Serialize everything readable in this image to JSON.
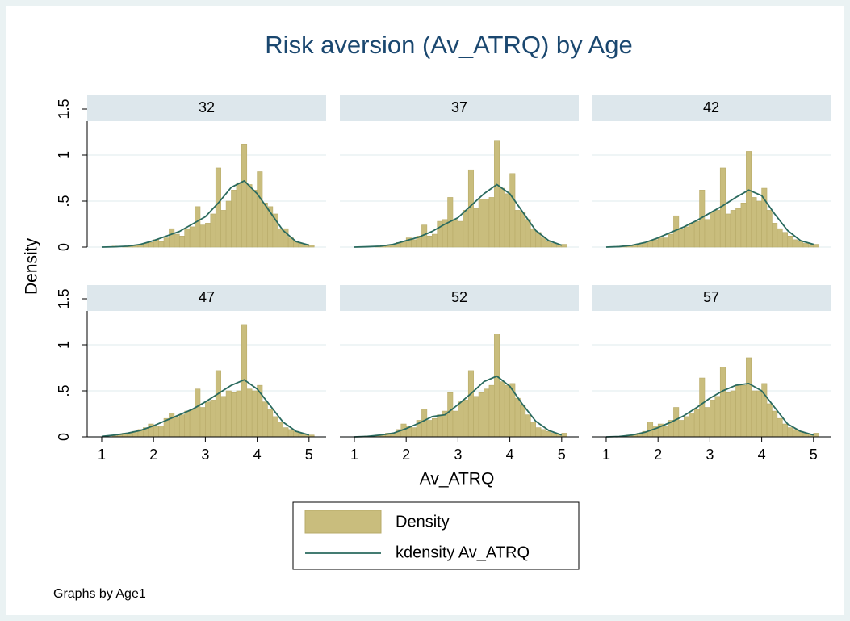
{
  "chart_data": {
    "type": "histogram",
    "title": "Risk aversion (Av_ATRQ) by Age",
    "xlabel": "Av_ATRQ",
    "ylabel": "Density",
    "note": "Graphs by Age1",
    "xlim": [
      0.72,
      5.33
    ],
    "xticks": [
      1,
      2,
      3,
      4,
      5
    ],
    "ylim": [
      0,
      1.5
    ],
    "yticks": [
      0,
      {
        "value": 0.5,
        "label": ".5"
      },
      1,
      1.5
    ],
    "grid": true,
    "bar_color": "#c9bd7d",
    "line_color": "#2a6a5e",
    "legend": {
      "items": [
        "Density",
        "kdensity Av_ATRQ"
      ],
      "position": "bottom"
    },
    "bins": [
      1,
      1.1,
      1.2,
      1.3,
      1.4,
      1.5,
      1.6,
      1.7,
      1.8,
      1.9,
      2,
      2.1,
      2.2,
      2.3,
      2.4,
      2.5,
      2.6,
      2.7,
      2.8,
      2.9,
      3,
      3.1,
      3.2,
      3.3,
      3.4,
      3.5,
      3.6,
      3.7,
      3.8,
      3.9,
      4,
      4.1,
      4.2,
      4.3,
      4.4,
      4.5,
      4.6,
      4.7,
      4.8,
      4.9,
      5,
      5.1
    ],
    "kde_x": [
      1,
      1.25,
      1.5,
      1.75,
      2,
      2.25,
      2.5,
      2.75,
      3,
      3.25,
      3.5,
      3.75,
      4,
      4.25,
      4.5,
      4.75,
      5
    ],
    "panels": [
      {
        "label": "32",
        "values": [
          0,
          0,
          0.01,
          0,
          0.01,
          0.01,
          0.02,
          0.02,
          0.04,
          0.05,
          0.08,
          0.06,
          0.1,
          0.2,
          0.14,
          0.12,
          0.2,
          0.22,
          0.44,
          0.24,
          0.26,
          0.36,
          0.86,
          0.4,
          0.5,
          0.62,
          0.7,
          1.12,
          0.68,
          0.62,
          0.82,
          0.48,
          0.44,
          0.36,
          0.2,
          0.2,
          0.1,
          0.06,
          0.04,
          0.03,
          0.02
        ],
        "kdensity": [
          0,
          0.003,
          0.01,
          0.03,
          0.07,
          0.12,
          0.17,
          0.25,
          0.33,
          0.48,
          0.65,
          0.72,
          0.58,
          0.38,
          0.18,
          0.06,
          0.02
        ]
      },
      {
        "label": "37",
        "values": [
          0,
          0,
          0,
          0,
          0.01,
          0.01,
          0.02,
          0.02,
          0.05,
          0.06,
          0.1,
          0.08,
          0.12,
          0.24,
          0.12,
          0.14,
          0.28,
          0.3,
          0.54,
          0.3,
          0.28,
          0.4,
          0.84,
          0.42,
          0.52,
          0.52,
          0.54,
          1.16,
          0.64,
          0.58,
          0.8,
          0.4,
          0.38,
          0.3,
          0.2,
          0.16,
          0.1,
          0.06,
          0.04,
          0.02,
          0.03
        ],
        "kdensity": [
          0,
          0.004,
          0.01,
          0.03,
          0.07,
          0.11,
          0.17,
          0.25,
          0.32,
          0.45,
          0.58,
          0.68,
          0.58,
          0.38,
          0.18,
          0.07,
          0.02
        ]
      },
      {
        "label": "42",
        "values": [
          0,
          0,
          0.01,
          0.01,
          0.01,
          0.02,
          0.03,
          0.04,
          0.06,
          0.08,
          0.1,
          0.1,
          0.14,
          0.34,
          0.2,
          0.22,
          0.26,
          0.28,
          0.62,
          0.3,
          0.38,
          0.4,
          0.86,
          0.36,
          0.4,
          0.42,
          0.48,
          1.04,
          0.54,
          0.5,
          0.64,
          0.4,
          0.26,
          0.2,
          0.16,
          0.12,
          0.08,
          0.06,
          0.04,
          0.03,
          0.03
        ],
        "kdensity": [
          0,
          0.005,
          0.02,
          0.05,
          0.1,
          0.16,
          0.22,
          0.29,
          0.37,
          0.45,
          0.54,
          0.62,
          0.56,
          0.36,
          0.18,
          0.07,
          0.03
        ]
      },
      {
        "label": "47",
        "values": [
          0,
          0,
          0.01,
          0.02,
          0.04,
          0.04,
          0.06,
          0.08,
          0.1,
          0.14,
          0.12,
          0.12,
          0.2,
          0.26,
          0.22,
          0.24,
          0.28,
          0.3,
          0.52,
          0.32,
          0.38,
          0.4,
          0.72,
          0.44,
          0.5,
          0.48,
          0.5,
          1.22,
          0.52,
          0.5,
          0.56,
          0.38,
          0.3,
          0.22,
          0.16,
          0.1,
          0.08,
          0.06,
          0.04,
          0.03,
          0.02
        ],
        "kdensity": [
          0.005,
          0.02,
          0.04,
          0.07,
          0.12,
          0.18,
          0.24,
          0.3,
          0.38,
          0.47,
          0.56,
          0.62,
          0.52,
          0.34,
          0.16,
          0.06,
          0.02
        ]
      },
      {
        "label": "52",
        "values": [
          0,
          0,
          0.01,
          0.01,
          0.02,
          0.02,
          0.04,
          0.04,
          0.08,
          0.14,
          0.12,
          0.1,
          0.18,
          0.3,
          0.18,
          0.2,
          0.24,
          0.28,
          0.48,
          0.28,
          0.38,
          0.4,
          0.72,
          0.44,
          0.48,
          0.52,
          0.56,
          1.12,
          0.6,
          0.56,
          0.58,
          0.42,
          0.34,
          0.24,
          0.16,
          0.1,
          0.08,
          0.06,
          0.04,
          0.03,
          0.04
        ],
        "kdensity": [
          0,
          0.005,
          0.02,
          0.04,
          0.09,
          0.15,
          0.22,
          0.24,
          0.35,
          0.47,
          0.6,
          0.66,
          0.55,
          0.35,
          0.17,
          0.07,
          0.02
        ]
      },
      {
        "label": "57",
        "values": [
          0,
          0,
          0,
          0.01,
          0.02,
          0.02,
          0.04,
          0.06,
          0.16,
          0.12,
          0.14,
          0.12,
          0.18,
          0.32,
          0.18,
          0.22,
          0.26,
          0.3,
          0.64,
          0.32,
          0.4,
          0.44,
          0.76,
          0.48,
          0.5,
          0.56,
          0.56,
          0.86,
          0.5,
          0.5,
          0.58,
          0.36,
          0.28,
          0.2,
          0.14,
          0.1,
          0.08,
          0.06,
          0.04,
          0.03,
          0.04
        ],
        "kdensity": [
          0,
          0.004,
          0.02,
          0.05,
          0.1,
          0.16,
          0.23,
          0.32,
          0.42,
          0.5,
          0.56,
          0.58,
          0.5,
          0.32,
          0.14,
          0.06,
          0.02
        ]
      }
    ]
  }
}
